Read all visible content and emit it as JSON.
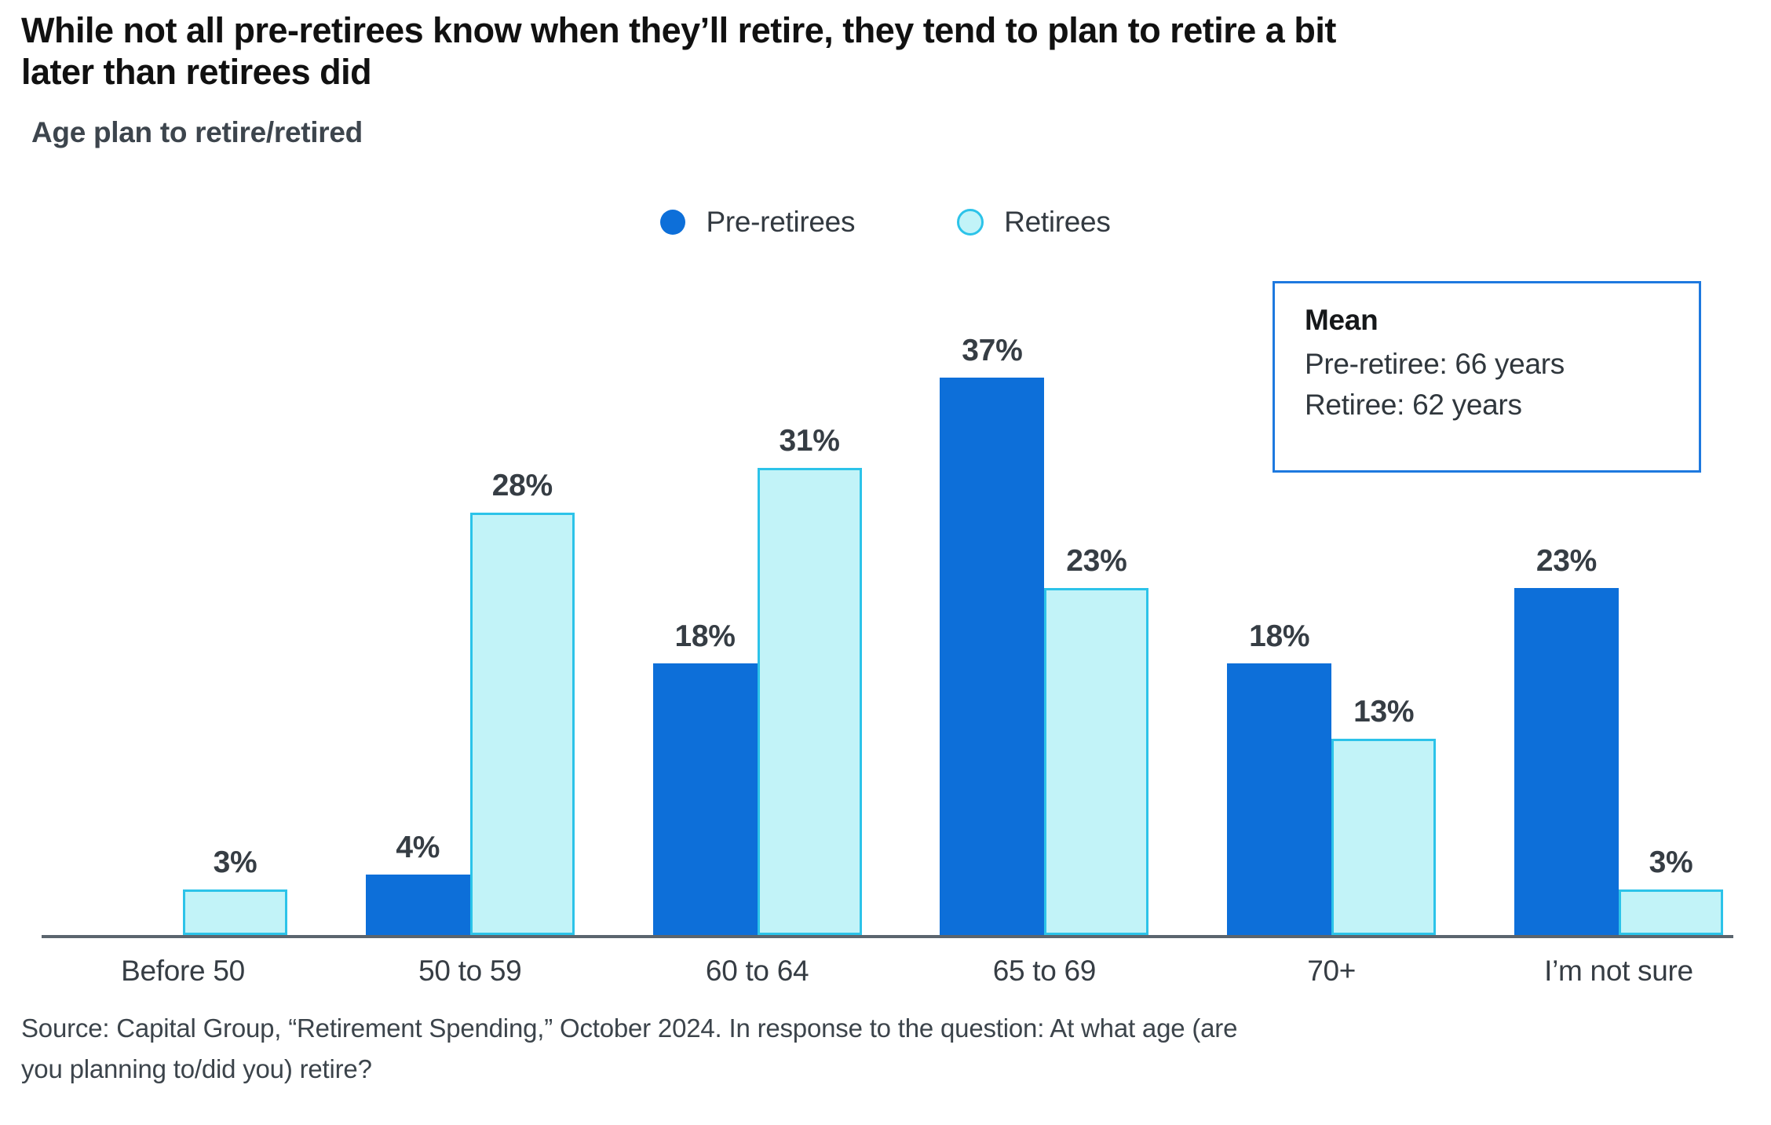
{
  "title": {
    "line1": "While not all pre-retirees know when they’ll retire, they tend to plan to retire a bit",
    "line2": "later than retirees did"
  },
  "subtitle": "Age plan to retire/retired",
  "legend": {
    "items": [
      {
        "label": "Pre-retirees",
        "marker": "filled-circle"
      },
      {
        "label": "Retirees",
        "marker": "outlined-circle"
      }
    ]
  },
  "mean_box": {
    "heading": "Mean",
    "line1": "Pre-retiree: 66 years",
    "line2": "Retiree: 62 years"
  },
  "source": {
    "line1": "Source: Capital Group, “Retirement Spending,” October 2024. In response to the question: At what age (are",
    "line2": "you planning to/did you) retire?"
  },
  "colors": {
    "pre_retirees_bar": "#0d6fd9",
    "retirees_bar_fill": "#c2f3f8",
    "retirees_bar_border": "#2cc3e9",
    "mean_box_border": "#1e79df",
    "axis_line": "#5b656e",
    "label_text": "#363d44"
  },
  "chart_data": {
    "type": "bar",
    "title": "Age plan to retire/retired",
    "categories": [
      "Before 50",
      "50 to 59",
      "60 to 64",
      "65 to 69",
      "70+",
      "I’m not sure"
    ],
    "series": [
      {
        "name": "Pre-retirees",
        "values": [
          null,
          4,
          18,
          37,
          18,
          23
        ]
      },
      {
        "name": "Retirees",
        "values": [
          3,
          28,
          31,
          23,
          13,
          3
        ]
      }
    ],
    "value_label_format": "percent",
    "unit": "%",
    "ylim": [
      0,
      40
    ],
    "grid": false,
    "y_axis_shown": false,
    "legend_position": "top-center",
    "annotations": [
      "Mean",
      "Pre-retiree: 66 years",
      "Retiree: 62 years"
    ]
  }
}
